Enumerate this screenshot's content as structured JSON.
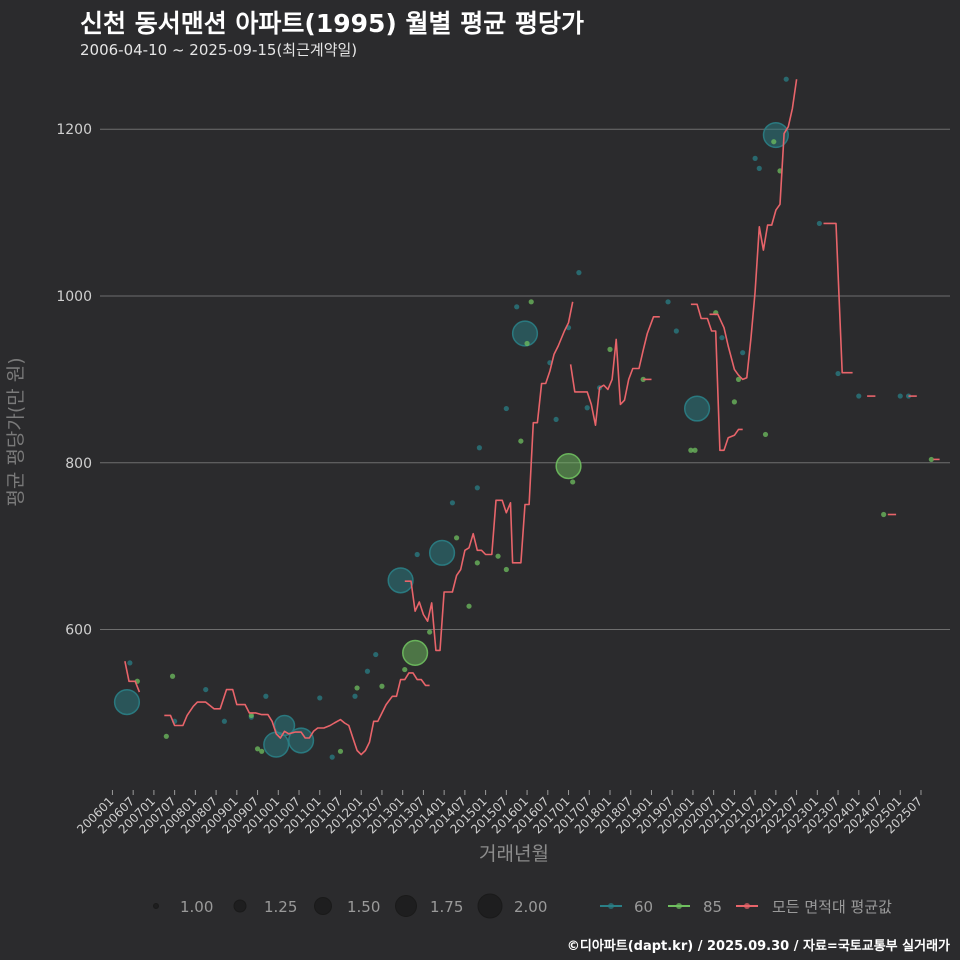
{
  "header": {
    "title": "신천 동서맨션 아파트(1995) 월별 평균 평당가",
    "subtitle": "2006-04-10 ~ 2025-09-15(최근계약일)"
  },
  "caption": "©디아파트(dapt.kr) / 2025.09.30 / 자료=국토교통부 실거래가",
  "colors": {
    "background": "#2b2b2d",
    "grid": "#6e6e6e",
    "series_60": "#2a7f86",
    "series_85": "#6fbf5f",
    "series_all": "#e8646a"
  },
  "chart_data": {
    "type": "line",
    "title": "신천 동서맨션 아파트(1995) 월별 평균 평당가",
    "xlabel": "거래년월",
    "ylabel": "평균 평당가(만 원)",
    "ylim": [
      410,
      1265
    ],
    "yticks": [
      600,
      800,
      1000,
      1200
    ],
    "xticks": [
      "200601",
      "200607",
      "200701",
      "200707",
      "200801",
      "200807",
      "200901",
      "200907",
      "201001",
      "201007",
      "201101",
      "201107",
      "201201",
      "201207",
      "201301",
      "201307",
      "201401",
      "201407",
      "201501",
      "201507",
      "201601",
      "201607",
      "201701",
      "201707",
      "201801",
      "201807",
      "201901",
      "201907",
      "202001",
      "202007",
      "202101",
      "202107",
      "202201",
      "202207",
      "202301",
      "202307",
      "202401",
      "202407",
      "202501",
      "202507"
    ],
    "legend_size": {
      "title": "",
      "values": [
        "1.00",
        "1.25",
        "1.50",
        "1.75",
        "2.00"
      ]
    },
    "legend_series": [
      "60",
      "85",
      "모든 면적대 평균값"
    ],
    "points_60": [
      {
        "t": 2006.35,
        "y": 513,
        "n": 2.0
      },
      {
        "t": 2006.42,
        "y": 560,
        "n": 1.0
      },
      {
        "t": 2007.5,
        "y": 490,
        "n": 1.0
      },
      {
        "t": 2008.25,
        "y": 528,
        "n": 1.0
      },
      {
        "t": 2008.7,
        "y": 490,
        "n": 1.0
      },
      {
        "t": 2009.35,
        "y": 495,
        "n": 1.0
      },
      {
        "t": 2009.7,
        "y": 520,
        "n": 1.0
      },
      {
        "t": 2009.95,
        "y": 462,
        "n": 2.0
      },
      {
        "t": 2010.15,
        "y": 485,
        "n": 1.75
      },
      {
        "t": 2010.55,
        "y": 467,
        "n": 2.0
      },
      {
        "t": 2011.0,
        "y": 518,
        "n": 1.0
      },
      {
        "t": 2011.3,
        "y": 447,
        "n": 1.0
      },
      {
        "t": 2011.85,
        "y": 520,
        "n": 1.0
      },
      {
        "t": 2012.15,
        "y": 550,
        "n": 1.0
      },
      {
        "t": 2012.35,
        "y": 570,
        "n": 1.0
      },
      {
        "t": 2012.95,
        "y": 659,
        "n": 2.0
      },
      {
        "t": 2013.35,
        "y": 690,
        "n": 1.0
      },
      {
        "t": 2013.95,
        "y": 692,
        "n": 2.0
      },
      {
        "t": 2014.2,
        "y": 752,
        "n": 1.0
      },
      {
        "t": 2014.8,
        "y": 770,
        "n": 1.0
      },
      {
        "t": 2014.85,
        "y": 818,
        "n": 1.0
      },
      {
        "t": 2015.5,
        "y": 865,
        "n": 1.0
      },
      {
        "t": 2015.75,
        "y": 987,
        "n": 1.0
      },
      {
        "t": 2015.95,
        "y": 955,
        "n": 2.0
      },
      {
        "t": 2016.55,
        "y": 920,
        "n": 1.0
      },
      {
        "t": 2016.7,
        "y": 852,
        "n": 1.0
      },
      {
        "t": 2017.0,
        "y": 962,
        "n": 1.0
      },
      {
        "t": 2017.25,
        "y": 1028,
        "n": 1.0
      },
      {
        "t": 2017.45,
        "y": 866,
        "n": 1.0
      },
      {
        "t": 2017.75,
        "y": 890,
        "n": 1.0
      },
      {
        "t": 2019.4,
        "y": 993,
        "n": 1.0
      },
      {
        "t": 2019.6,
        "y": 958,
        "n": 1.0
      },
      {
        "t": 2020.1,
        "y": 865,
        "n": 2.0
      },
      {
        "t": 2020.7,
        "y": 950,
        "n": 1.0
      },
      {
        "t": 2021.2,
        "y": 932,
        "n": 1.0
      },
      {
        "t": 2021.5,
        "y": 1165,
        "n": 1.0
      },
      {
        "t": 2021.6,
        "y": 1153,
        "n": 1.0
      },
      {
        "t": 2022.0,
        "y": 1193,
        "n": 2.0
      },
      {
        "t": 2022.25,
        "y": 1260,
        "n": 1.0
      },
      {
        "t": 2023.05,
        "y": 1087,
        "n": 1.0
      },
      {
        "t": 2023.5,
        "y": 907,
        "n": 1.0
      },
      {
        "t": 2024.0,
        "y": 880,
        "n": 1.0
      },
      {
        "t": 2025.0,
        "y": 880,
        "n": 1.0
      },
      {
        "t": 2025.2,
        "y": 880,
        "n": 1.0
      }
    ],
    "points_85": [
      {
        "t": 2006.6,
        "y": 538,
        "n": 1.0
      },
      {
        "t": 2007.3,
        "y": 472,
        "n": 1.0
      },
      {
        "t": 2007.45,
        "y": 544,
        "n": 1.0
      },
      {
        "t": 2009.35,
        "y": 497,
        "n": 1.0
      },
      {
        "t": 2009.5,
        "y": 457,
        "n": 1.0
      },
      {
        "t": 2009.6,
        "y": 454,
        "n": 1.0
      },
      {
        "t": 2011.5,
        "y": 454,
        "n": 1.0
      },
      {
        "t": 2011.9,
        "y": 530,
        "n": 1.0
      },
      {
        "t": 2012.5,
        "y": 532,
        "n": 1.0
      },
      {
        "t": 2013.05,
        "y": 552,
        "n": 1.0
      },
      {
        "t": 2013.3,
        "y": 572,
        "n": 2.0
      },
      {
        "t": 2013.65,
        "y": 597,
        "n": 1.0
      },
      {
        "t": 2014.3,
        "y": 710,
        "n": 1.0
      },
      {
        "t": 2014.6,
        "y": 628,
        "n": 1.0
      },
      {
        "t": 2014.8,
        "y": 680,
        "n": 1.0
      },
      {
        "t": 2015.3,
        "y": 688,
        "n": 1.0
      },
      {
        "t": 2015.5,
        "y": 672,
        "n": 1.0
      },
      {
        "t": 2015.85,
        "y": 826,
        "n": 1.0
      },
      {
        "t": 2016.0,
        "y": 943,
        "n": 1.0
      },
      {
        "t": 2016.1,
        "y": 993,
        "n": 1.0
      },
      {
        "t": 2017.0,
        "y": 796,
        "n": 2.0
      },
      {
        "t": 2017.1,
        "y": 777,
        "n": 1.0
      },
      {
        "t": 2018.0,
        "y": 936,
        "n": 1.0
      },
      {
        "t": 2018.8,
        "y": 900,
        "n": 1.0
      },
      {
        "t": 2019.95,
        "y": 815,
        "n": 1.0
      },
      {
        "t": 2020.05,
        "y": 815,
        "n": 1.0
      },
      {
        "t": 2020.55,
        "y": 980,
        "n": 1.0
      },
      {
        "t": 2021.0,
        "y": 873,
        "n": 1.0
      },
      {
        "t": 2021.1,
        "y": 900,
        "n": 1.0
      },
      {
        "t": 2021.75,
        "y": 834,
        "n": 1.0
      },
      {
        "t": 2021.95,
        "y": 1185,
        "n": 1.0
      },
      {
        "t": 2022.1,
        "y": 1150,
        "n": 1.0
      },
      {
        "t": 2024.6,
        "y": 738,
        "n": 1.0
      },
      {
        "t": 2025.75,
        "y": 804,
        "n": 1.0
      }
    ],
    "series_all": [
      [
        [
          2006.3,
          562
        ],
        [
          2006.4,
          538
        ],
        [
          2006.55,
          538
        ],
        [
          2006.65,
          525
        ]
      ],
      [
        [
          2007.25,
          497
        ],
        [
          2007.4,
          497
        ],
        [
          2007.5,
          485
        ],
        [
          2007.7,
          485
        ],
        [
          2007.8,
          497
        ],
        [
          2007.95,
          508
        ],
        [
          2008.05,
          513
        ],
        [
          2008.25,
          513
        ],
        [
          2008.45,
          505
        ],
        [
          2008.6,
          505
        ],
        [
          2008.75,
          528
        ],
        [
          2008.9,
          528
        ],
        [
          2009.0,
          510
        ],
        [
          2009.2,
          510
        ],
        [
          2009.3,
          500
        ],
        [
          2009.45,
          500
        ],
        [
          2009.6,
          498
        ],
        [
          2009.75,
          498
        ],
        [
          2009.85,
          490
        ],
        [
          2009.95,
          475
        ],
        [
          2010.05,
          470
        ],
        [
          2010.15,
          478
        ],
        [
          2010.25,
          475
        ],
        [
          2010.4,
          477
        ],
        [
          2010.55,
          477
        ],
        [
          2010.65,
          470
        ],
        [
          2010.75,
          470
        ],
        [
          2010.85,
          478
        ],
        [
          2010.95,
          482
        ],
        [
          2011.1,
          482
        ],
        [
          2011.25,
          485
        ],
        [
          2011.35,
          488
        ],
        [
          2011.5,
          492
        ],
        [
          2011.6,
          488
        ],
        [
          2011.7,
          485
        ],
        [
          2011.8,
          470
        ],
        [
          2011.9,
          455
        ],
        [
          2012.0,
          450
        ],
        [
          2012.1,
          455
        ],
        [
          2012.2,
          465
        ],
        [
          2012.3,
          490
        ],
        [
          2012.4,
          490
        ],
        [
          2012.5,
          500
        ],
        [
          2012.6,
          510
        ],
        [
          2012.75,
          520
        ],
        [
          2012.85,
          520
        ],
        [
          2012.95,
          540
        ],
        [
          2013.05,
          540
        ],
        [
          2013.15,
          548
        ],
        [
          2013.25,
          548
        ],
        [
          2013.35,
          540
        ],
        [
          2013.45,
          540
        ],
        [
          2013.55,
          533
        ],
        [
          2013.65,
          533
        ]
      ],
      [
        [
          2013.05,
          658
        ],
        [
          2013.2,
          658
        ],
        [
          2013.3,
          622
        ],
        [
          2013.4,
          633
        ],
        [
          2013.5,
          618
        ],
        [
          2013.6,
          610
        ],
        [
          2013.7,
          632
        ],
        [
          2013.8,
          575
        ],
        [
          2013.9,
          575
        ],
        [
          2014.0,
          645
        ],
        [
          2014.2,
          645
        ],
        [
          2014.3,
          665
        ],
        [
          2014.4,
          672
        ],
        [
          2014.5,
          695
        ],
        [
          2014.6,
          698
        ],
        [
          2014.7,
          715
        ],
        [
          2014.8,
          695
        ],
        [
          2014.9,
          695
        ],
        [
          2015.0,
          690
        ],
        [
          2015.15,
          690
        ],
        [
          2015.25,
          755
        ],
        [
          2015.4,
          755
        ],
        [
          2015.5,
          740
        ],
        [
          2015.6,
          752
        ],
        [
          2015.65,
          680
        ],
        [
          2015.85,
          680
        ],
        [
          2015.95,
          750
        ],
        [
          2016.05,
          750
        ],
        [
          2016.15,
          848
        ],
        [
          2016.25,
          848
        ],
        [
          2016.35,
          895
        ],
        [
          2016.45,
          895
        ],
        [
          2016.55,
          910
        ],
        [
          2016.65,
          930
        ],
        [
          2016.75,
          940
        ],
        [
          2016.9,
          958
        ],
        [
          2017.0,
          968
        ],
        [
          2017.1,
          993
        ]
      ],
      [
        [
          2017.05,
          918
        ],
        [
          2017.15,
          885
        ],
        [
          2017.3,
          885
        ],
        [
          2017.45,
          885
        ],
        [
          2017.55,
          870
        ],
        [
          2017.65,
          845
        ],
        [
          2017.75,
          890
        ],
        [
          2017.85,
          893
        ],
        [
          2017.95,
          888
        ],
        [
          2018.05,
          900
        ],
        [
          2018.15,
          948
        ],
        [
          2018.25,
          870
        ],
        [
          2018.35,
          875
        ],
        [
          2018.45,
          900
        ],
        [
          2018.55,
          913
        ],
        [
          2018.7,
          913
        ],
        [
          2018.8,
          935
        ],
        [
          2018.9,
          955
        ],
        [
          2019.05,
          975
        ],
        [
          2019.2,
          975
        ]
      ],
      [
        [
          2018.8,
          900
        ],
        [
          2019.0,
          900
        ]
      ],
      [
        [
          2019.95,
          990
        ],
        [
          2020.1,
          990
        ],
        [
          2020.2,
          973
        ],
        [
          2020.35,
          973
        ],
        [
          2020.45,
          958
        ],
        [
          2020.55,
          958
        ],
        [
          2020.65,
          815
        ],
        [
          2020.75,
          815
        ],
        [
          2020.85,
          830
        ],
        [
          2021.0,
          833
        ],
        [
          2021.1,
          840
        ],
        [
          2021.2,
          840
        ]
      ],
      [
        [
          2020.4,
          978
        ],
        [
          2020.6,
          978
        ],
        [
          2020.75,
          962
        ],
        [
          2020.85,
          940
        ],
        [
          2021.0,
          912
        ],
        [
          2021.1,
          905
        ],
        [
          2021.2,
          900
        ],
        [
          2021.3,
          902
        ],
        [
          2021.4,
          950
        ],
        [
          2021.5,
          1005
        ],
        [
          2021.6,
          1083
        ],
        [
          2021.7,
          1055
        ],
        [
          2021.8,
          1085
        ],
        [
          2021.9,
          1085
        ],
        [
          2022.0,
          1103
        ],
        [
          2022.1,
          1110
        ],
        [
          2022.2,
          1195
        ],
        [
          2022.3,
          1203
        ],
        [
          2022.4,
          1225
        ],
        [
          2022.5,
          1260
        ]
      ],
      [
        [
          2023.15,
          1087
        ],
        [
          2023.45,
          1087
        ],
        [
          2023.6,
          908
        ],
        [
          2023.85,
          908
        ]
      ],
      [
        [
          2024.2,
          880
        ],
        [
          2024.4,
          880
        ]
      ],
      [
        [
          2024.7,
          738
        ],
        [
          2024.9,
          738
        ]
      ],
      [
        [
          2025.2,
          880
        ],
        [
          2025.4,
          880
        ]
      ],
      [
        [
          2025.8,
          804
        ],
        [
          2025.95,
          804
        ]
      ]
    ]
  }
}
